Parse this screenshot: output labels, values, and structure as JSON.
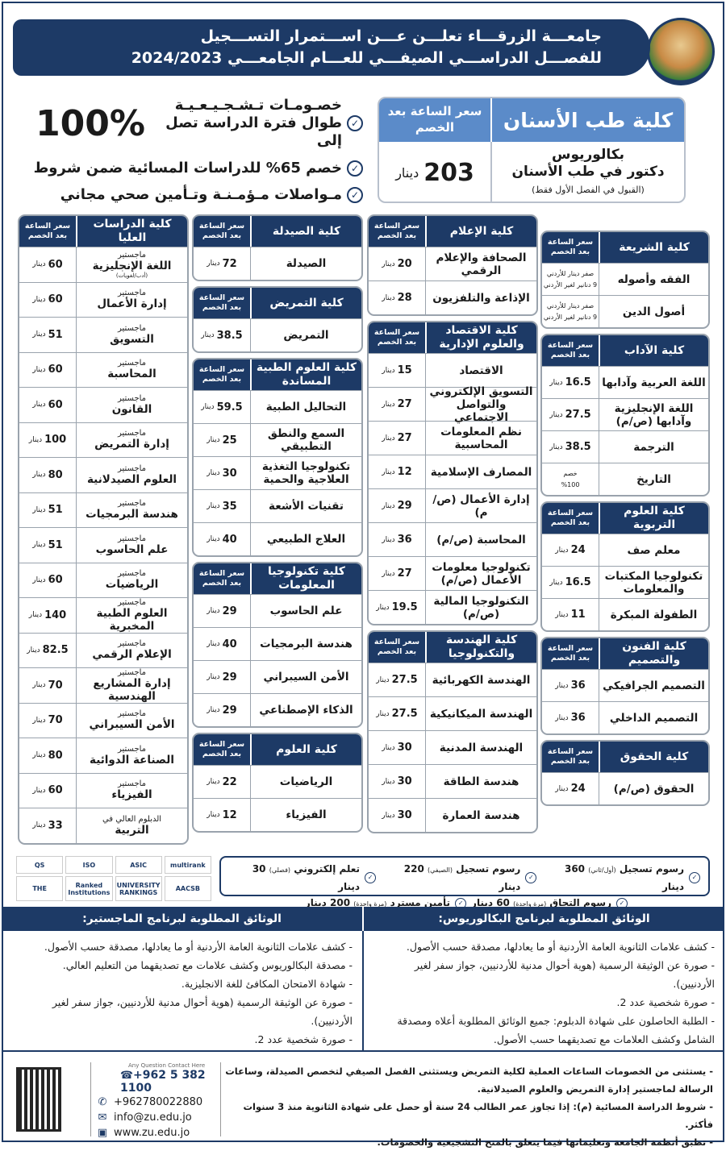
{
  "header": {
    "line1": "جامعـــة الزرقـــاء تعلـــن عـــن اســـتمرار التســـجيل",
    "line2": "للفصـــل الدراســـي الصيفـــي للعـــام الجامعـــي 2024/2023",
    "logo_text": "جامعة الزرقاء ZARQA UNIVERSITY"
  },
  "dentistry": {
    "name": "كلية طب الأسنان",
    "price_header": "سعر الساعة بعد الخصم",
    "degree": "بكالوريوس",
    "program": "دكتور في طب الأسنان",
    "note": "(القبول في الفصل الأول فقط)",
    "price": "203",
    "currency": "دينار"
  },
  "highlights": [
    {
      "text": "خصـومـات تـشـجـيـعـيـة طوال فترة الدراسة تصل إلى",
      "big": "100%"
    },
    {
      "text": "خصم 65% للدراسات المسائية ضمن شروط"
    },
    {
      "text": "مـواصلات مـؤمـنـة وتـأمين صحي مجاني"
    }
  ],
  "price_header": "سعر الساعة بعد الخصم",
  "currency": "دينار",
  "columns": [
    [
      {
        "name": "كلية الشريعة",
        "rows": [
          {
            "program": "الفقه وأصوله",
            "price_lines": [
              "صفر دينار للأردني",
              "9 دنانير لغير الأردني"
            ]
          },
          {
            "program": "أصول الدين",
            "price_lines": [
              "صفر دينار للأردني",
              "9 دنانير لغير الأردني"
            ]
          }
        ]
      },
      {
        "name": "كلية الآداب",
        "rows": [
          {
            "program": "اللغة العربية وآدابها",
            "price": "16.5"
          },
          {
            "program": "اللغة الإنجليزية وآدابها (ص/م)",
            "price": "27.5"
          },
          {
            "program": "الترجمة",
            "price": "38.5"
          },
          {
            "program": "التاريخ",
            "price_lines": [
              "خصم",
              "%100"
            ]
          }
        ]
      },
      {
        "name": "كلية العلوم التربوية",
        "rows": [
          {
            "program": "معلم صف",
            "price": "24"
          },
          {
            "program": "تكنولوجيا المكتبات والمعلومات",
            "price": "16.5"
          },
          {
            "program": "الطفولة المبكرة",
            "price": "11"
          }
        ]
      },
      {
        "name": "كلية الفنون والتصميم",
        "rows": [
          {
            "program": "التصميم الجرافيكي",
            "price": "36"
          },
          {
            "program": "التصميم الداخلي",
            "price": "36"
          }
        ]
      },
      {
        "name": "كلية الحقوق",
        "rows": [
          {
            "program": "الحقوق (ص/م)",
            "price": "24"
          }
        ]
      }
    ],
    [
      {
        "name": "كلية الإعلام",
        "rows": [
          {
            "program": "الصحافة والإعلام الرقمي",
            "price": "20"
          },
          {
            "program": "الإذاعة والتلفزيون",
            "price": "28"
          }
        ]
      },
      {
        "name": "كلية الاقتصاد والعلوم الإدارية",
        "rows": [
          {
            "program": "الاقتصاد",
            "price": "15"
          },
          {
            "program": "التسويق الإلكتروني والتواصل الاجتماعي",
            "price": "27"
          },
          {
            "program": "نظم المعلومات المحاسبية",
            "price": "27"
          },
          {
            "program": "المصارف الإسلامية",
            "price": "12"
          },
          {
            "program": "إدارة الأعمال (ص/م)",
            "price": "29"
          },
          {
            "program": "المحاسبة (ص/م)",
            "price": "36"
          },
          {
            "program": "تكنولوجيا معلومات الأعمال (ص/م)",
            "price": "27"
          },
          {
            "program": "التكنولوجيا المالية (ص/م)",
            "price": "19.5"
          }
        ]
      },
      {
        "name": "كلية الهندسة والتكنولوجيا",
        "rows": [
          {
            "program": "الهندسة الكهربائية",
            "price": "27.5"
          },
          {
            "program": "الهندسة الميكانيكية",
            "price": "27.5"
          },
          {
            "program": "الهندسة المدنية",
            "price": "30"
          },
          {
            "program": "هندسة الطاقة",
            "price": "30"
          },
          {
            "program": "هندسة العمارة",
            "price": "30"
          }
        ]
      }
    ],
    [
      {
        "name": "كلية الصيدلة",
        "rows": [
          {
            "program": "الصيدلة",
            "price": "72"
          }
        ]
      },
      {
        "name": "كلية التمريض",
        "rows": [
          {
            "program": "التمريض",
            "price": "38.5"
          }
        ]
      },
      {
        "name": "كلية العلوم الطبية المساندة",
        "rows": [
          {
            "program": "التحاليل الطبية",
            "price": "59.5"
          },
          {
            "program": "السمع والنطق التطبيقي",
            "price": "25"
          },
          {
            "program": "تكنولوجيا التغذية العلاجية والحمية",
            "price": "30"
          },
          {
            "program": "تقنيات الأشعة",
            "price": "35"
          },
          {
            "program": "العلاج الطبيعي",
            "price": "40"
          }
        ]
      },
      {
        "name": "كلية تكنولوجيا المعلومات",
        "rows": [
          {
            "program": "علم الحاسوب",
            "price": "29"
          },
          {
            "program": "هندسة البرمجيات",
            "price": "40"
          },
          {
            "program": "الأمن السيبراني",
            "price": "29"
          },
          {
            "program": "الذكاء الإصطناعي",
            "price": "29"
          }
        ]
      },
      {
        "name": "كلية العلوم",
        "rows": [
          {
            "program": "الرياضيات",
            "price": "22"
          },
          {
            "program": "الفيزياء",
            "price": "12"
          }
        ]
      }
    ],
    [
      {
        "name": "كلية الدراسات العليا",
        "rows": [
          {
            "prefix": "ماجستير",
            "program": "اللغة الإنجليزية",
            "note": "(أدب/لغويات)",
            "price": "60"
          },
          {
            "prefix": "ماجستير",
            "program": "إدارة الأعمال",
            "price": "60"
          },
          {
            "prefix": "ماجستير",
            "program": "التسويق",
            "price": "51"
          },
          {
            "prefix": "ماجستير",
            "program": "المحاسبة",
            "price": "60"
          },
          {
            "prefix": "ماجستير",
            "program": "القانون",
            "price": "60"
          },
          {
            "prefix": "ماجستير",
            "program": "إدارة التمريض",
            "price": "100"
          },
          {
            "prefix": "ماجستير",
            "program": "العلوم الصيدلانية",
            "price": "80"
          },
          {
            "prefix": "ماجستير",
            "program": "هندسة البرمجيات",
            "price": "51"
          },
          {
            "prefix": "ماجستير",
            "program": "علم الحاسوب",
            "price": "51"
          },
          {
            "prefix": "ماجستير",
            "program": "الرياضيات",
            "price": "60"
          },
          {
            "prefix": "ماجستير",
            "program": "العلوم الطبية المخبرية",
            "price": "140"
          },
          {
            "prefix": "ماجستير",
            "program": "الإعلام الرقمي",
            "price": "82.5"
          },
          {
            "prefix": "ماجستير",
            "program": "إدارة المشاريع الهندسية",
            "price": "70"
          },
          {
            "prefix": "ماجستير",
            "program": "الأمن السيبراني",
            "price": "70"
          },
          {
            "prefix": "ماجستير",
            "program": "الصناعة الدوائية",
            "price": "80"
          },
          {
            "prefix": "ماجستير",
            "program": "الفيزياء",
            "price": "60"
          },
          {
            "prefix": "الدبلوم العالي في",
            "program": "التربية",
            "price": "33"
          }
        ]
      }
    ]
  ],
  "fees": {
    "line1": [
      {
        "label": "رسوم تسجيل",
        "small": "(أول/ثاني)",
        "value": "360 دينار"
      },
      {
        "label": "رسوم تسجيل",
        "small": "(الصيفي)",
        "value": "220 دينار"
      },
      {
        "label": "تعلم إلكتروني",
        "small": "(فصلي)",
        "value": "30 دينار"
      }
    ],
    "line2": [
      {
        "label": "رسوم التحاق",
        "small": "(مرة واحدة)",
        "value": "60 دينار"
      },
      {
        "label": "تأمين مسترد",
        "small": "(مرة واحدة)",
        "value": "200 دينار"
      }
    ]
  },
  "logos": [
    "QS",
    "ISO",
    "ASIC",
    "multirank",
    "THE",
    "Ranked Institutions",
    "UNIVERSITY RANKINGS",
    "AACSB"
  ],
  "documents": {
    "bachelor_title": "الوثائق المطلوبة لبرنامج البكالوريوس:",
    "bachelor": [
      "كشف علامات الثانوية العامة الأردنية أو ما يعادلها، مصدقة حسب الأصول.",
      "صورة عن الوثيقة الرسمية (هوية أحوال مدنية للأردنيين، جواز سفر لغير الأردنيين).",
      "صورة شخصية عدد 2.",
      "الطلبة الحاصلون على شهادة الدبلوم: جميع الوثائق المطلوبة أعلاه ومصدقة الشامل وكشف العلامات مع تصديقهما حسب الأصول."
    ],
    "master_title": "الوثائق المطلوبة لبرنامج الماجستير:",
    "master": [
      "كشف علامات الثانوية العامة الأردنية أو ما يعادلها، مصدقة حسب الأصول.",
      "مصدقة البكالوريوس وكشف علامات مع تصديقهما من التعليم العالي.",
      "شهادة الامتحان المكافئ للغة الانجليزية.",
      "صورة عن الوثيقة الرسمية (هوية أحوال مدنية للأردنيين، جواز سفر لغير الأردنيين).",
      "صورة شخصية عدد 2."
    ]
  },
  "notes": [
    "يستثنى من الخصومات الساعات العملية لكلية التمريض ويستثنى الفصل الصيفي لتخصص الصيدلة، وساعات الرسالة لماجستير إدارة التمريض والعلوم الصيدلانية.",
    "شروط الدراسة المسائية (م): إذا تجاوز عمر الطالب 24 سنة أو حصل على شهادة الثانوية منذ 3 سنوات فأكثر.",
    "تطبق أنظمة الجامعة وتعليماتها فيما يتعلق بالمنح التشجيعية والخصومات."
  ],
  "contact": {
    "caption": "Any Question Contact Here",
    "phone": "+962 5 382 1100",
    "whatsapp": "+962780022880",
    "email": "info@zu.edu.jo",
    "website": "www.zu.edu.jo"
  }
}
